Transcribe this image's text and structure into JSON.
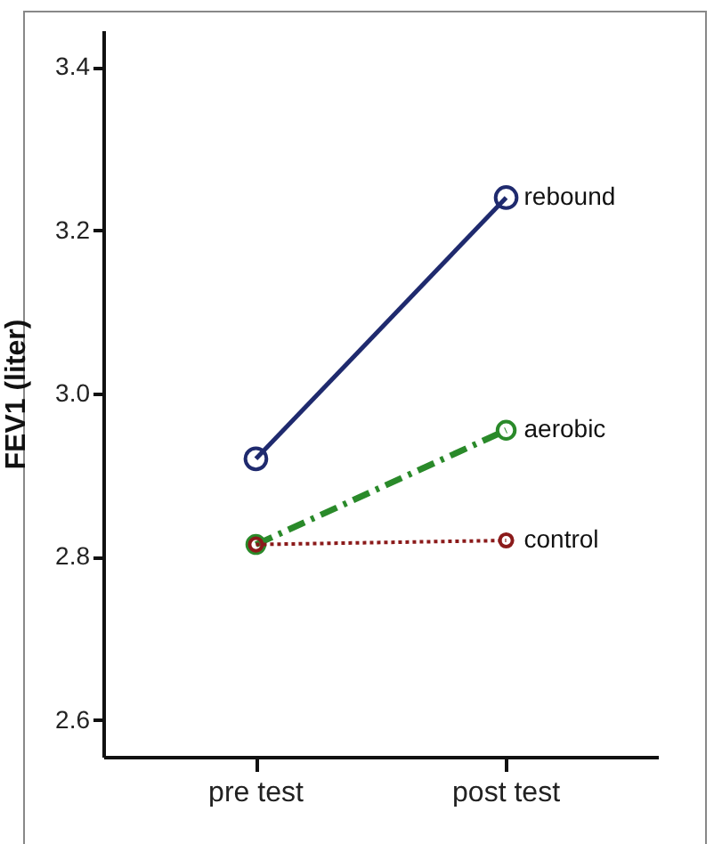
{
  "chart_data": {
    "type": "line",
    "ylabel": "FEV1 (liter)",
    "categories": [
      "pre test",
      "post test"
    ],
    "ylim": [
      2.555,
      3.445
    ],
    "yticks": [
      {
        "value": 2.6,
        "label": "2.6"
      },
      {
        "value": 2.8,
        "label": "2.8"
      },
      {
        "value": 3.0,
        "label": "3.0"
      },
      {
        "value": 3.2,
        "label": "3.2"
      },
      {
        "value": 3.4,
        "label": "3.4"
      }
    ],
    "grid": false,
    "marker": "circle",
    "series": [
      {
        "name": "rebound",
        "color": "#1f2a6e",
        "line_style": "solid",
        "values": [
          2.92,
          3.24
        ]
      },
      {
        "name": "aerobic",
        "color": "#2a8a2a",
        "line_style": "dashed",
        "values": [
          2.815,
          2.955
        ]
      },
      {
        "name": "control",
        "color": "#8b1a1a",
        "line_style": "dotted",
        "values": [
          2.815,
          2.82
        ]
      }
    ]
  }
}
